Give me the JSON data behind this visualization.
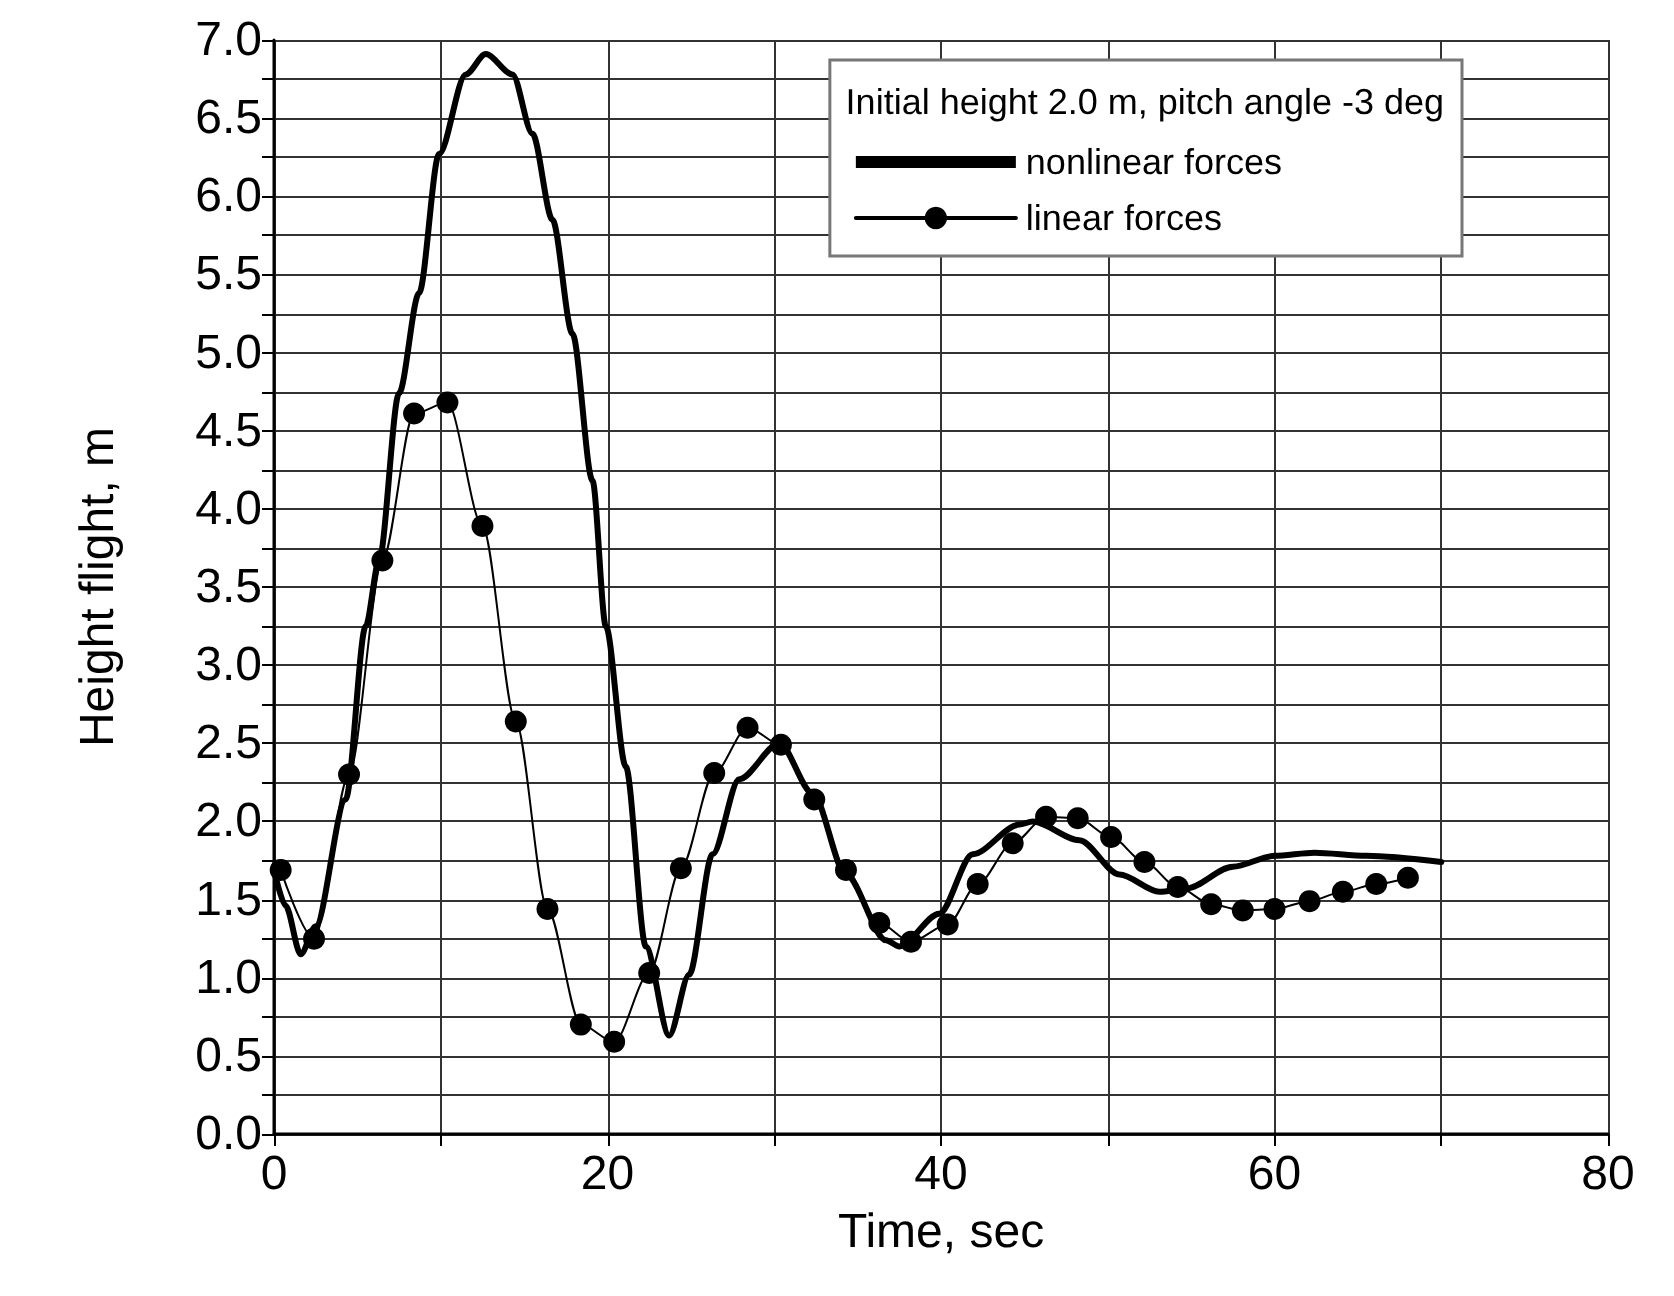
{
  "chart_data": {
    "type": "line",
    "xlabel": "Time, sec",
    "ylabel": "Height flight, m",
    "legend_title": "Initial height 2.0 m, pitch angle -3 deg",
    "legend": "top right",
    "grid": true,
    "xlim": [
      0,
      80
    ],
    "xticks": [
      0,
      {
        "value": 10,
        "label": null
      },
      20,
      {
        "value": 30,
        "label": null
      },
      40,
      {
        "value": 50,
        "label": null
      },
      60,
      {
        "value": 70,
        "label": null
      },
      80
    ],
    "ylim": [
      0,
      7
    ],
    "yticks": [
      {
        "value": 0,
        "label": "0.0"
      },
      {
        "value": 0.25,
        "label": null
      },
      {
        "value": 0.5,
        "label": "0.5"
      },
      {
        "value": 0.75,
        "label": null
      },
      {
        "value": 1,
        "label": "1.0"
      },
      {
        "value": 1.25,
        "label": null
      },
      {
        "value": 1.5,
        "label": "1.5"
      },
      {
        "value": 1.75,
        "label": null
      },
      {
        "value": 2,
        "label": "2.0"
      },
      {
        "value": 2.25,
        "label": null
      },
      {
        "value": 2.5,
        "label": "2.5"
      },
      {
        "value": 2.75,
        "label": null
      },
      {
        "value": 3,
        "label": "3.0"
      },
      {
        "value": 3.25,
        "label": null
      },
      {
        "value": 3.5,
        "label": "3.5"
      },
      {
        "value": 3.75,
        "label": null
      },
      {
        "value": 4,
        "label": "4.0"
      },
      {
        "value": 4.25,
        "label": null
      },
      {
        "value": 4.5,
        "label": "4.5"
      },
      {
        "value": 4.75,
        "label": null
      },
      {
        "value": 5,
        "label": "5.0"
      },
      {
        "value": 5.25,
        "label": null
      },
      {
        "value": 5.5,
        "label": "5.5"
      },
      {
        "value": 5.75,
        "label": null
      },
      {
        "value": 6,
        "label": "6.0"
      },
      {
        "value": 6.25,
        "label": null
      },
      {
        "value": 6.5,
        "label": "6.5"
      },
      {
        "value": 6.75,
        "label": null
      },
      {
        "value": 7,
        "label": "7.0"
      }
    ],
    "series": [
      {
        "name": "nonlinear forces",
        "color": "#000000",
        "marker": "none",
        "line_style": "solid",
        "x": [
          0,
          0.7,
          1.6,
          2.5,
          4.3,
          5.5,
          6.3,
          7.5,
          8.7,
          9.9,
          11.5,
          12.7,
          14.3,
          15.5,
          16.7,
          17.9,
          19.1,
          19.9,
          21.1,
          22.3,
          23.7,
          24.9,
          26.3,
          27.9,
          30.3,
          32.3,
          34.3,
          36.7,
          37.5,
          39.9,
          41.9,
          44.7,
          45.5,
          48.3,
          50.7,
          53.1,
          54.7,
          57.5,
          60,
          62.4,
          65.5,
          70
        ],
        "values": [
          1.69,
          1.46,
          1.15,
          1.33,
          2.14,
          3.25,
          3.67,
          4.74,
          5.38,
          6.27,
          6.78,
          6.91,
          6.78,
          6.4,
          5.85,
          5.12,
          4.18,
          3.25,
          2.35,
          1.2,
          0.63,
          1.02,
          1.79,
          2.27,
          2.5,
          2.18,
          1.66,
          1.24,
          1.2,
          1.41,
          1.79,
          1.98,
          2.0,
          1.88,
          1.66,
          1.55,
          1.57,
          1.71,
          1.78,
          1.8,
          1.78,
          1.74
        ]
      },
      {
        "name": "linear forces",
        "color": "#000000",
        "marker": "circle",
        "line_style": "solid",
        "x": [
          0.4,
          2.4,
          4.5,
          6.5,
          8.4,
          10.4,
          12.5,
          14.5,
          16.4,
          18.4,
          20.4,
          22.5,
          24.4,
          26.4,
          28.4,
          30.4,
          32.4,
          34.3,
          36.3,
          38.2,
          40.4,
          42.2,
          44.3,
          46.3,
          48.2,
          50.2,
          52.2,
          54.2,
          56.2,
          58.1,
          60,
          62.1,
          64.1,
          66.1,
          68.0
        ],
        "values": [
          1.69,
          1.25,
          2.3,
          3.67,
          4.61,
          4.68,
          3.89,
          2.64,
          1.44,
          0.7,
          0.59,
          1.03,
          1.7,
          2.31,
          2.6,
          2.49,
          2.14,
          1.69,
          1.35,
          1.23,
          1.34,
          1.6,
          1.86,
          2.03,
          2.02,
          1.9,
          1.74,
          1.58,
          1.47,
          1.43,
          1.44,
          1.49,
          1.55,
          1.6,
          1.64
        ]
      }
    ]
  }
}
